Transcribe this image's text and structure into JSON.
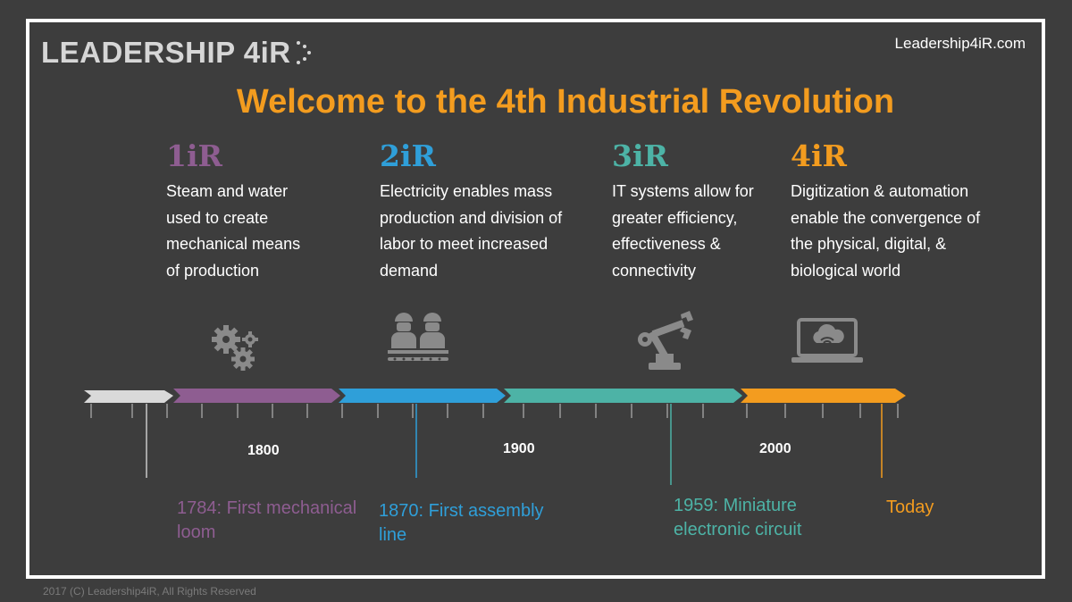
{
  "brand": {
    "logo_text": "LEADERSHIP 4iR",
    "site_url": "Leadership4iR.com"
  },
  "title": "Welcome to the 4th Industrial Revolution",
  "eras": [
    {
      "label": "1iR",
      "color": "#8e5d91",
      "description": "Steam and water used to create mechanical means of production",
      "icon": "gears-icon"
    },
    {
      "label": "2iR",
      "color": "#2f9fd9",
      "description": "Electricity enables mass production and division of labor to meet increased demand",
      "icon": "assembly-workers-icon"
    },
    {
      "label": "3iR",
      "color": "#4db3a6",
      "description": "IT systems allow for greater efficiency, effectiveness & connectivity",
      "icon": "robot-arm-icon"
    },
    {
      "label": "4iR",
      "color": "#f39c1f",
      "description": "Digitization & automation enable the convergence of the physical, digital, & biological world",
      "icon": "laptop-cloud-icon"
    }
  ],
  "timeline": {
    "years": [
      "1800",
      "1900",
      "2000"
    ],
    "events": [
      {
        "text": "1784: First mechanical loom",
        "color": "#8e5d91"
      },
      {
        "text": "1870: First assembly line",
        "color": "#2f9fd9"
      },
      {
        "text": "1959: Miniature electronic circuit",
        "color": "#4db3a6"
      },
      {
        "text": "Today",
        "color": "#f39c1f"
      }
    ],
    "segment_colors": [
      "#d9d9d9",
      "#8e5d91",
      "#2f9fd9",
      "#4db3a6",
      "#f39c1f"
    ]
  },
  "footer": {
    "copyright": "2017 (C) Leadership4iR, All Rights Reserved"
  }
}
